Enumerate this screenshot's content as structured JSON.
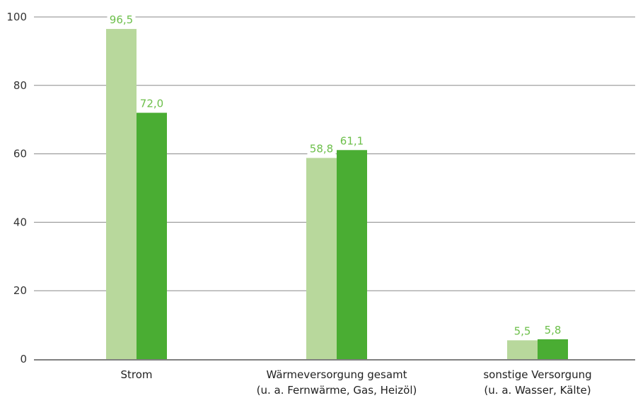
{
  "chart_data": {
    "type": "bar",
    "categories": [
      [
        "Strom"
      ],
      [
        "Wärmeversorgung gesamt",
        "(u. a. Fernwärme, Gas, Heizöl)"
      ],
      [
        "sonstige Versorgung",
        "(u. a. Wasser, Kälte)"
      ]
    ],
    "series": [
      {
        "values": [
          96.5,
          58.8,
          5.5
        ],
        "labels": [
          "96,5",
          "58,8",
          "5,5"
        ],
        "color": "#b8d89c"
      },
      {
        "values": [
          72.0,
          61.1,
          5.8
        ],
        "labels": [
          "72,0",
          "61,1",
          "5,8"
        ],
        "color": "#4aad33"
      }
    ],
    "ylim": [
      0,
      100
    ],
    "yticks": [
      0,
      20,
      40,
      60,
      80,
      100
    ],
    "grid": true,
    "label_color": "#6cbf4a",
    "axis_color": "#808080",
    "grid_color": "#8a8a8a"
  }
}
